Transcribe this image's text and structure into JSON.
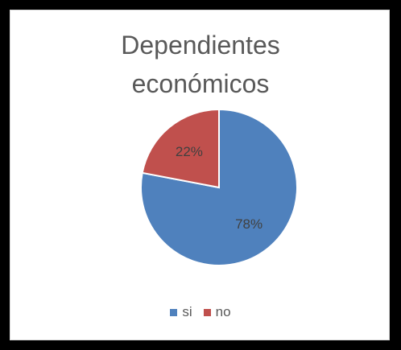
{
  "chart_data": {
    "type": "pie",
    "title_lines": [
      "Dependientes",
      "económicos"
    ],
    "slices": [
      {
        "name": "si",
        "value": 78,
        "label": "78%",
        "color": "#4F81BD"
      },
      {
        "name": "no",
        "value": 22,
        "label": "22%",
        "color": "#C0504D"
      }
    ],
    "legend_position": "bottom"
  }
}
